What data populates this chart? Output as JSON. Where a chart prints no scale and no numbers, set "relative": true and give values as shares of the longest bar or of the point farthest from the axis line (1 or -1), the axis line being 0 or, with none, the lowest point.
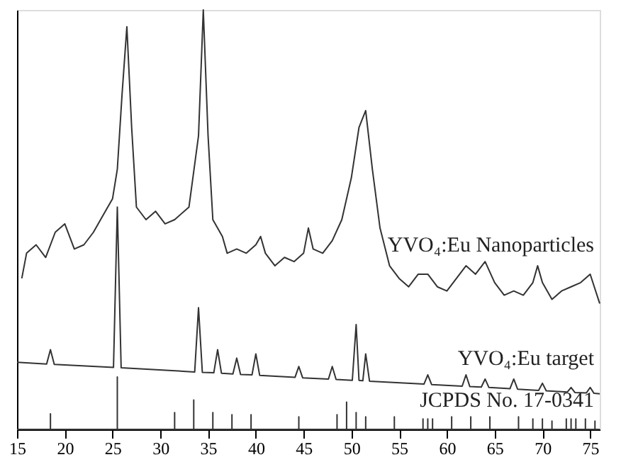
{
  "chart_data": {
    "type": "line",
    "relative": true,
    "xlim": [
      15,
      76
    ],
    "xticks": [
      15,
      20,
      25,
      30,
      35,
      40,
      45,
      50,
      55,
      60,
      65,
      70,
      75
    ],
    "grid": false,
    "legend": false,
    "marker": "none",
    "line_style": "solid",
    "series": [
      {
        "name": "YVO₄:Eu Nanoparticles",
        "color": "#333333",
        "x": [
          15.5,
          16,
          17,
          18,
          19,
          20,
          21,
          22,
          23,
          24,
          25,
          25.5,
          26,
          26.5,
          27,
          27.5,
          28.5,
          29.5,
          30.5,
          31.5,
          33,
          34,
          34.5,
          35,
          35.5,
          36.5,
          37,
          38,
          39,
          40,
          40.5,
          41,
          42,
          43,
          44,
          45,
          45.5,
          46,
          47,
          48,
          49,
          50,
          50.8,
          51.5,
          52.2,
          53,
          54,
          55,
          56,
          57,
          58,
          59,
          60,
          61,
          62,
          63,
          64,
          65,
          66,
          67,
          68,
          69,
          69.5,
          70,
          71,
          72,
          73,
          74,
          75,
          76
        ],
        "values": [
          0.36,
          0.42,
          0.44,
          0.41,
          0.47,
          0.49,
          0.43,
          0.44,
          0.47,
          0.51,
          0.55,
          0.62,
          0.8,
          0.96,
          0.72,
          0.53,
          0.5,
          0.52,
          0.49,
          0.5,
          0.53,
          0.7,
          1.0,
          0.7,
          0.5,
          0.46,
          0.42,
          0.43,
          0.42,
          0.44,
          0.46,
          0.42,
          0.39,
          0.41,
          0.4,
          0.42,
          0.48,
          0.43,
          0.42,
          0.45,
          0.5,
          0.6,
          0.72,
          0.76,
          0.62,
          0.48,
          0.39,
          0.36,
          0.34,
          0.37,
          0.37,
          0.34,
          0.33,
          0.36,
          0.39,
          0.37,
          0.4,
          0.35,
          0.32,
          0.33,
          0.32,
          0.35,
          0.39,
          0.35,
          0.31,
          0.33,
          0.34,
          0.35,
          0.37,
          0.3
        ]
      },
      {
        "name": "YVO₄:Eu target",
        "color": "#333333",
        "x": [
          15,
          18.1,
          18.5,
          18.9,
          25.1,
          25.5,
          25.9,
          33.6,
          34,
          34.4,
          35.6,
          36,
          36.4,
          37.6,
          38,
          38.4,
          39.6,
          40,
          40.4,
          44.1,
          44.5,
          44.9,
          47.6,
          48,
          48.4,
          50.1,
          50.5,
          50.8,
          51.2,
          51.5,
          51.9,
          57.6,
          58,
          58.4,
          61.6,
          62,
          62.4,
          63.6,
          64,
          64.4,
          66.6,
          67,
          67.4,
          69.6,
          70,
          70.4,
          72.6,
          73,
          73.4,
          74.6,
          75,
          75.4,
          76
        ],
        "values": [
          0.16,
          0.156,
          0.19,
          0.155,
          0.148,
          0.53,
          0.147,
          0.137,
          0.29,
          0.136,
          0.135,
          0.19,
          0.134,
          0.132,
          0.17,
          0.131,
          0.13,
          0.18,
          0.129,
          0.124,
          0.15,
          0.123,
          0.12,
          0.15,
          0.119,
          0.117,
          0.25,
          0.117,
          0.116,
          0.18,
          0.115,
          0.108,
          0.13,
          0.107,
          0.103,
          0.13,
          0.102,
          0.101,
          0.12,
          0.1,
          0.097,
          0.12,
          0.096,
          0.093,
          0.11,
          0.092,
          0.089,
          0.1,
          0.088,
          0.087,
          0.1,
          0.086,
          0.085
        ]
      },
      {
        "name": "JCPDS No. 17-0341",
        "color": "#333333",
        "x": [
          15,
          18.5,
          18.5,
          18.5,
          25.5,
          25.5,
          25.5,
          31.5,
          31.5,
          31.5,
          33.5,
          33.5,
          33.5,
          35.5,
          35.5,
          35.5,
          37.5,
          37.5,
          37.5,
          39.5,
          39.5,
          39.5,
          44.5,
          44.5,
          44.5,
          48.5,
          48.5,
          48.5,
          49.5,
          49.5,
          49.5,
          50.5,
          50.5,
          50.5,
          51.5,
          51.5,
          51.5,
          54.5,
          54.5,
          54.5,
          57.5,
          57.5,
          57.5,
          58,
          58,
          58,
          58.5,
          58.5,
          58.5,
          60.5,
          60.5,
          60.5,
          62.5,
          62.5,
          62.5,
          64.5,
          64.5,
          64.5,
          67.5,
          67.5,
          67.5,
          69,
          69,
          69,
          70,
          70,
          70,
          71,
          71,
          71,
          72.5,
          72.5,
          72.5,
          73,
          73,
          73,
          73.5,
          73.5,
          73.5,
          74.5,
          74.5,
          74.5,
          75.5,
          75.5,
          75.5,
          76
        ],
        "values": [
          0,
          0,
          0.037,
          0,
          0,
          0.125,
          0,
          0,
          0.04,
          0,
          0,
          0.07,
          0,
          0,
          0.04,
          0,
          0,
          0.035,
          0,
          0,
          0.035,
          0,
          0,
          0.03,
          0,
          0,
          0.035,
          0,
          0,
          0.065,
          0,
          0,
          0.04,
          0,
          0,
          0.03,
          0,
          0,
          0.03,
          0,
          0,
          0.025,
          0,
          0,
          0.025,
          0,
          0,
          0.025,
          0,
          0,
          0.03,
          0,
          0,
          0.03,
          0,
          0,
          0.03,
          0,
          0,
          0.03,
          0,
          0,
          0.025,
          0,
          0,
          0.025,
          0,
          0,
          0.02,
          0,
          0,
          0.025,
          0,
          0,
          0.025,
          0,
          0,
          0.025,
          0,
          0,
          0.025,
          0,
          0,
          0.02,
          0,
          0
        ]
      }
    ]
  }
}
